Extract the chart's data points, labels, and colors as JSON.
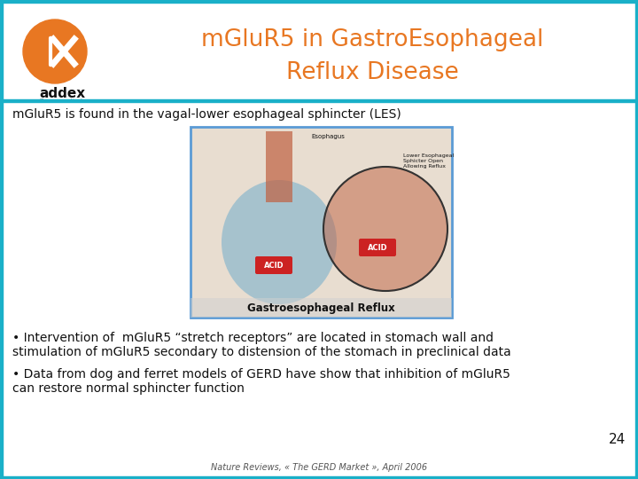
{
  "bg_color": "#ffffff",
  "border_color": "#1ab0c8",
  "title_line1": "mGluR5 in GastroEsophageal",
  "title_line2": "Reflux Disease",
  "title_color": "#e87722",
  "subtitle": "mGluR5 is found in the vagal-lower esophageal sphincter (LES)",
  "bullet1_line1": "• Intervention of  mGluR5 “stretch receptors” are located in stomach wall and",
  "bullet1_line2": "stimulation of mGluR5 secondary to distension of the stomach in preclinical data",
  "bullet2_line1": "• Data from dog and ferret models of GERD have show that inhibition of mGluR5",
  "bullet2_line2": "can restore normal sphincter function",
  "footer": "Nature Reviews, « The GERD Market », April 2006",
  "page_number": "24",
  "text_color": "#111111",
  "image_border_color": "#5b9bd5",
  "top_border_color": "#1ab0c8"
}
